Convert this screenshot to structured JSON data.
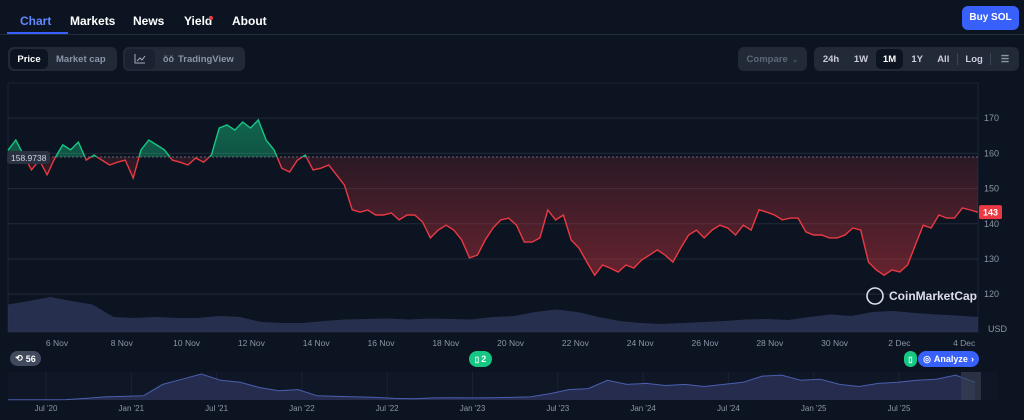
{
  "nav": {
    "tabs": [
      {
        "label": "Chart",
        "active": true
      },
      {
        "label": "Markets"
      },
      {
        "label": "News"
      },
      {
        "label": "Yield",
        "notification": true
      },
      {
        "label": "About"
      }
    ],
    "buy_label": "Buy SOL"
  },
  "toolbar": {
    "type_toggle": [
      "Price",
      "Market cap"
    ],
    "type_selected": "Price",
    "view_icon": "line-chart-icon",
    "tradingview_label": "TradingView",
    "compare_label": "Compare",
    "ranges": [
      "24h",
      "1W",
      "1M",
      "1Y",
      "All"
    ],
    "range_selected": "1M",
    "log_label": "Log",
    "settings_icon": "sliders-icon"
  },
  "colors": {
    "up": "#16c784",
    "down": "#ea3943",
    "accent": "#3861fb",
    "volume": "#2c3556"
  },
  "chart_data": {
    "type": "area",
    "currency": "USD",
    "reference_price": "158.9738",
    "current_price": "143",
    "watermark": "CoinMarketCap",
    "x_range": [
      "2025-11-04T12:00",
      "2025-12-04T10:00"
    ],
    "ylim": [
      114,
      176
    ],
    "yticks": [
      "120",
      "130",
      "140",
      "150",
      "160",
      "170"
    ],
    "xticks": [
      "6 Nov",
      "8 Nov",
      "10 Nov",
      "12 Nov",
      "14 Nov",
      "16 Nov",
      "18 Nov",
      "20 Nov",
      "22 Nov",
      "24 Nov",
      "26 Nov",
      "28 Nov",
      "30 Nov",
      "2 Dec",
      "4 Dec"
    ],
    "price": [
      160.9,
      163.8,
      159.5,
      155.3,
      158.1,
      153.9,
      158.7,
      162.4,
      161.0,
      163.2,
      158.1,
      159.5,
      158.1,
      156.7,
      157.5,
      158.1,
      153.0,
      161.0,
      163.8,
      162.4,
      161.0,
      158.1,
      157.5,
      156.7,
      158.7,
      157.5,
      159.5,
      167.2,
      168.1,
      166.6,
      168.9,
      167.2,
      169.5,
      163.8,
      161.0,
      155.8,
      154.7,
      158.1,
      159.5,
      155.3,
      155.8,
      156.7,
      153.9,
      151.0,
      144.0,
      143.3,
      143.9,
      142.5,
      142.5,
      143.1,
      141.1,
      142.5,
      142.5,
      140.5,
      136.0,
      138.2,
      139.6,
      138.2,
      135.4,
      130.3,
      131.1,
      135.4,
      138.8,
      141.1,
      141.6,
      139.6,
      134.8,
      134.8,
      136.0,
      143.9,
      141.1,
      142.5,
      135.4,
      133.1,
      129.1,
      125.4,
      128.3,
      127.4,
      126.3,
      128.3,
      127.4,
      129.7,
      131.1,
      132.6,
      131.1,
      129.1,
      133.1,
      136.8,
      138.2,
      136.0,
      138.2,
      139.6,
      138.8,
      136.8,
      139.6,
      138.2,
      144.0,
      143.3,
      142.5,
      141.1,
      141.6,
      141.6,
      137.7,
      136.8,
      136.8,
      136.0,
      136.0,
      136.8,
      138.8,
      138.2,
      129.1,
      126.9,
      125.4,
      126.9,
      126.3,
      128.3,
      134.0,
      139.6,
      138.8,
      142.5,
      141.6,
      141.6,
      144.5,
      143.9,
      143.3
    ],
    "volume": [
      0.55,
      0.62,
      0.7,
      0.62,
      0.55,
      0.3,
      0.28,
      0.3,
      0.28,
      0.28,
      0.32,
      0.3,
      0.2,
      0.18,
      0.18,
      0.22,
      0.25,
      0.26,
      0.27,
      0.25,
      0.27,
      0.26,
      0.25,
      0.3,
      0.32,
      0.4,
      0.45,
      0.4,
      0.3,
      0.22,
      0.18,
      0.16,
      0.18,
      0.2,
      0.22,
      0.25,
      0.26,
      0.24,
      0.3,
      0.35,
      0.32,
      0.4,
      0.42,
      0.38,
      0.35,
      0.33,
      0.3
    ],
    "badges": {
      "history_count": "56",
      "news_count": "2",
      "analyze_label": "Analyze"
    },
    "navigator": {
      "xticks": [
        "Jul '20",
        "Jan '21",
        "Jul '21",
        "Jan '22",
        "Jul '22",
        "Jan '23",
        "Jul '23",
        "Jan '24",
        "Jul '24",
        "Jan '25",
        "Jul '25"
      ],
      "price": [
        1.5,
        2,
        3,
        4,
        15,
        30,
        35,
        40,
        150,
        200,
        250,
        190,
        170,
        120,
        90,
        100,
        40,
        35,
        30,
        25,
        15,
        12,
        20,
        22,
        20,
        22,
        25,
        30,
        60,
        100,
        110,
        190,
        150,
        160,
        140,
        150,
        130,
        150,
        170,
        230,
        240,
        190,
        200,
        150,
        130,
        160,
        170,
        190,
        200,
        240,
        170
      ]
    }
  }
}
